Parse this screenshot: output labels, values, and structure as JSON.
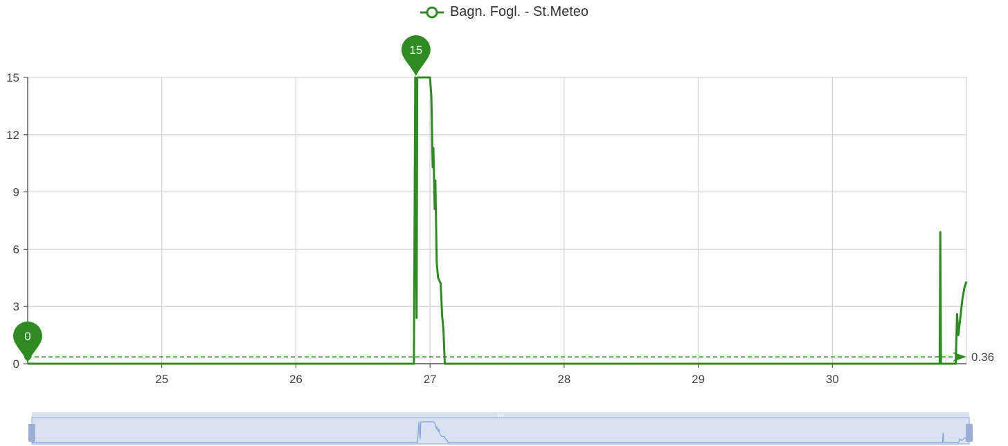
{
  "legend": {
    "label": "Bagn. Fogl. - St.Meteo"
  },
  "colors": {
    "series": "#2e8b22",
    "grid": "#d4d4d4",
    "axis": "#333333",
    "zoom_fill": "#dbe2ef",
    "zoom_border": "#a9bde3",
    "zoom_handle": "#9aaed6",
    "zoom_series": "#7d9ee0"
  },
  "chart_data": {
    "type": "line",
    "x_unit": "day",
    "xlim": [
      24,
      31
    ],
    "ylim": [
      0,
      15
    ],
    "xticks": [
      25,
      26,
      27,
      28,
      29,
      30
    ],
    "yticks": [
      0,
      3,
      6,
      9,
      12,
      15
    ],
    "grid": true,
    "legend_position": "top-center",
    "series": [
      {
        "name": "Bagn. Fogl. - St.Meteo",
        "points": [
          [
            24.0,
            0
          ],
          [
            26.88,
            0
          ],
          [
            26.89,
            15
          ],
          [
            26.9,
            2.4
          ],
          [
            26.905,
            15
          ],
          [
            27.0,
            15
          ],
          [
            27.01,
            14
          ],
          [
            27.02,
            10.3
          ],
          [
            27.025,
            11.3
          ],
          [
            27.035,
            8.1
          ],
          [
            27.04,
            9.6
          ],
          [
            27.05,
            5.3
          ],
          [
            27.06,
            4.5
          ],
          [
            27.08,
            4.2
          ],
          [
            27.09,
            2.5
          ],
          [
            27.1,
            1.8
          ],
          [
            27.11,
            0
          ],
          [
            30.8,
            0
          ],
          [
            30.805,
            6.9
          ],
          [
            30.81,
            0
          ],
          [
            30.92,
            0
          ],
          [
            30.93,
            2.6
          ],
          [
            30.94,
            1.5
          ],
          [
            30.96,
            2.8
          ],
          [
            30.97,
            3.4
          ],
          [
            30.985,
            4.0
          ],
          [
            31.0,
            4.3
          ]
        ]
      }
    ],
    "markers": [
      {
        "label": "15",
        "x": 26.895,
        "y": 15
      },
      {
        "label": "0",
        "x": 24.0,
        "y": 0
      }
    ],
    "mark_line": {
      "y": 0.36,
      "label": "0.36"
    }
  }
}
